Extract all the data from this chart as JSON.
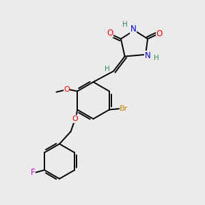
{
  "background_color": "#ebebeb",
  "bond_color": "#000000",
  "atom_colors": {
    "O": "#ff0000",
    "N": "#0000cc",
    "Br": "#cc8800",
    "F": "#cc00cc",
    "H": "#2e8b57",
    "C": "#000000"
  },
  "figsize": [
    3.0,
    3.0
  ],
  "dpi": 100,
  "xlim": [
    0,
    10
  ],
  "ylim": [
    0,
    10
  ]
}
